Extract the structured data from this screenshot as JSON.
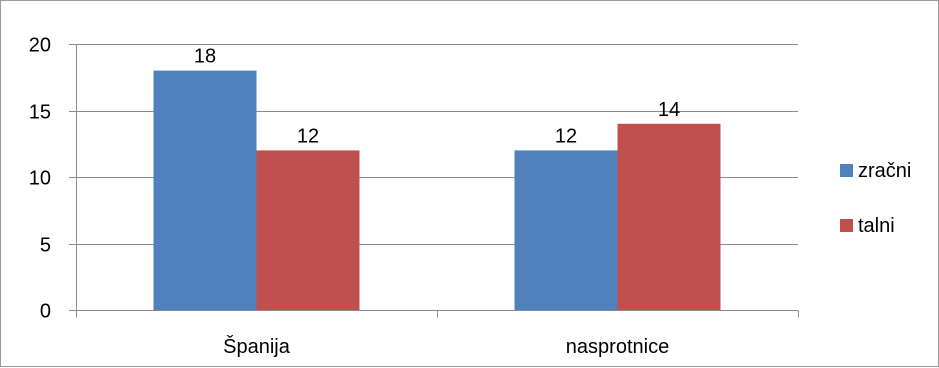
{
  "chart_data": {
    "type": "bar",
    "categories": [
      "Španija",
      "nasprotnice"
    ],
    "series": [
      {
        "name": "zračni",
        "values": [
          18,
          12
        ],
        "color": "#4F81BD"
      },
      {
        "name": "talni",
        "values": [
          12,
          14
        ],
        "color": "#C0504D"
      }
    ],
    "title": "",
    "xlabel": "",
    "ylabel": "",
    "ylim": [
      0,
      20
    ],
    "yticks": [
      0,
      5,
      10,
      15,
      20
    ],
    "grid": true,
    "legend_position": "right",
    "data_labels": true
  }
}
